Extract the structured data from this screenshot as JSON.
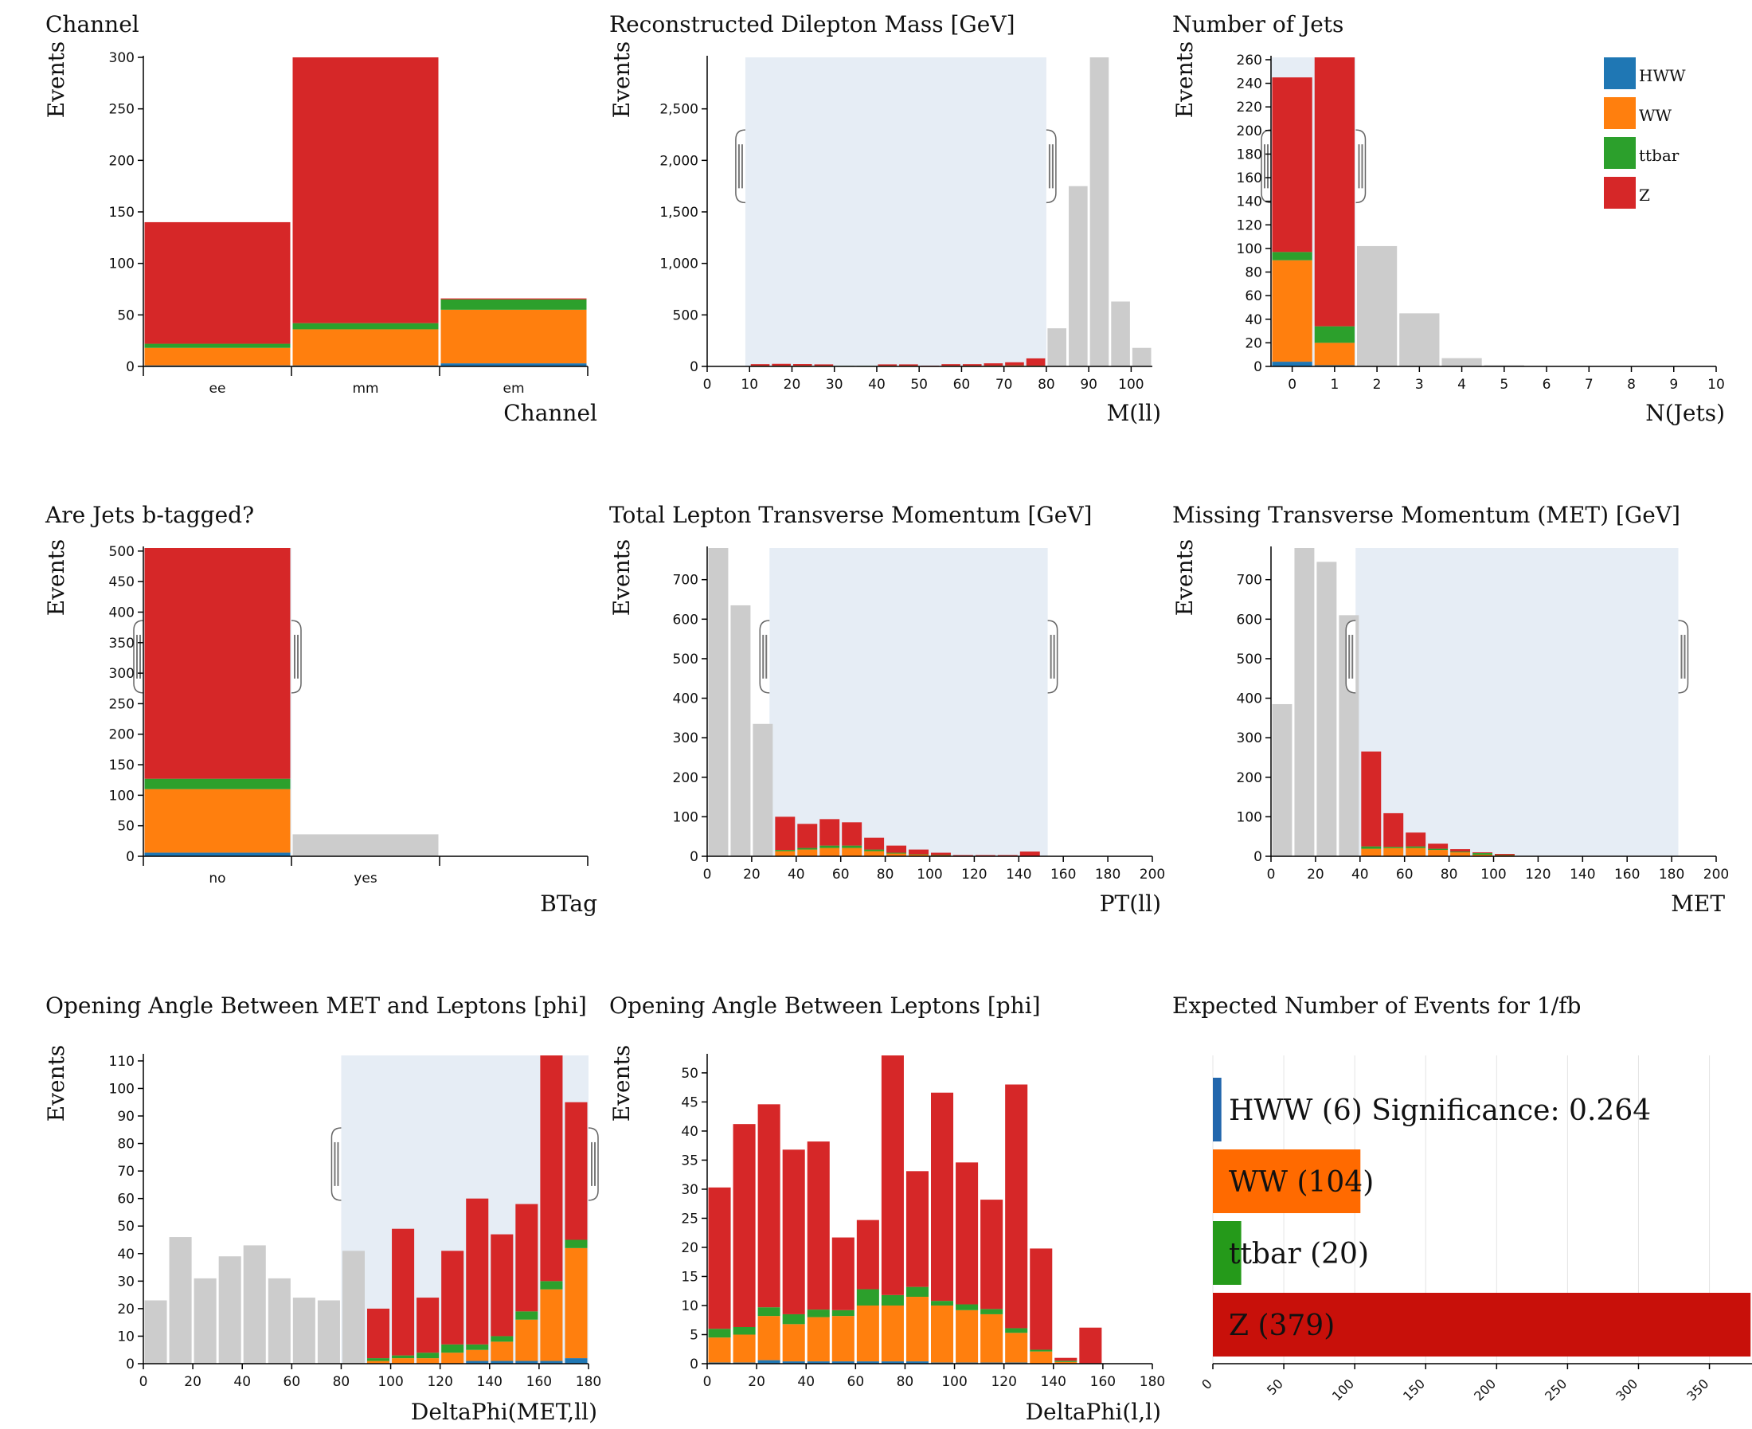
{
  "colors": {
    "HWW": "#1f77b4",
    "WW": "#ff7f0e",
    "ttbar": "#2ca02c",
    "Z": "#d62728",
    "inactive": "#cccccc",
    "brush": "#e6edf5"
  },
  "chart_data": [
    {
      "id": "channel",
      "type": "bar",
      "stacked": true,
      "title": "Channel",
      "xlabel": "Channel",
      "ylabel": "Events",
      "categories": [
        "ee",
        "mm",
        "em"
      ],
      "ylim": [
        0,
        300
      ],
      "yticks": [
        0,
        50,
        100,
        150,
        200,
        250,
        300
      ],
      "series": [
        {
          "name": "HWW",
          "values": [
            1,
            1,
            3
          ]
        },
        {
          "name": "WW",
          "values": [
            17,
            35,
            52
          ]
        },
        {
          "name": "ttbar",
          "values": [
            4,
            6,
            10
          ]
        },
        {
          "name": "Z",
          "values": [
            118,
            258,
            1
          ]
        }
      ],
      "inactive": [
        0,
        0,
        0
      ]
    },
    {
      "id": "mll",
      "type": "bar",
      "stacked": true,
      "title": "Reconstructed Dilepton Mass [GeV]",
      "xlabel": "M(ll)",
      "ylabel": "Events",
      "bin_width": 5,
      "xlim": [
        0,
        105
      ],
      "xticks": [
        0,
        10,
        20,
        30,
        40,
        50,
        60,
        70,
        80,
        90,
        100
      ],
      "ylim": [
        0,
        3000
      ],
      "yticks": [
        0,
        500,
        1000,
        1500,
        2000,
        2500
      ],
      "ytick_labels": [
        "0",
        "500",
        "1,000",
        "1,500",
        "2,000",
        "2,500"
      ],
      "x": [
        10,
        15,
        20,
        25,
        30,
        35,
        40,
        45,
        50,
        55,
        60,
        65,
        70,
        75,
        80,
        85,
        90,
        95,
        100
      ],
      "series": [
        {
          "name": "HWW",
          "values": [
            0,
            0,
            0,
            0,
            0,
            0,
            0,
            0,
            0,
            0,
            0,
            0,
            0,
            0,
            0,
            0,
            0,
            0,
            0
          ]
        },
        {
          "name": "WW",
          "values": [
            5,
            5,
            6,
            5,
            3,
            3,
            5,
            5,
            3,
            5,
            5,
            6,
            8,
            6,
            0,
            0,
            0,
            0,
            0
          ]
        },
        {
          "name": "ttbar",
          "values": [
            2,
            2,
            2,
            2,
            2,
            2,
            2,
            2,
            1,
            2,
            2,
            2,
            2,
            2,
            0,
            0,
            0,
            0,
            0
          ]
        },
        {
          "name": "Z",
          "values": [
            15,
            18,
            15,
            13,
            0,
            0,
            13,
            13,
            3,
            15,
            15,
            22,
            30,
            70,
            0,
            0,
            0,
            0,
            0
          ]
        }
      ],
      "inactive": [
        0,
        0,
        0,
        0,
        0,
        0,
        0,
        0,
        0,
        0,
        0,
        0,
        0,
        0,
        370,
        1750,
        3000,
        630,
        180
      ],
      "brush": [
        9,
        80
      ]
    },
    {
      "id": "njets",
      "type": "bar",
      "stacked": true,
      "title": "Number of Jets",
      "xlabel": "N(Jets)",
      "ylabel": "Events",
      "bin_width": 1,
      "bin_offset": -0.5,
      "xlim": [
        -0.5,
        10
      ],
      "xticks": [
        0,
        1,
        2,
        3,
        4,
        5,
        6,
        7,
        8,
        9,
        10
      ],
      "ylim": [
        0,
        262
      ],
      "yticks": [
        0,
        20,
        40,
        60,
        80,
        100,
        120,
        140,
        160,
        180,
        200,
        220,
        240,
        260
      ],
      "x": [
        0,
        1,
        2,
        3,
        4,
        5
      ],
      "series": [
        {
          "name": "HWW",
          "values": [
            4,
            1,
            0,
            0,
            0,
            0
          ]
        },
        {
          "name": "WW",
          "values": [
            86,
            19,
            0,
            0,
            0,
            0
          ]
        },
        {
          "name": "ttbar",
          "values": [
            7,
            14,
            0,
            0,
            0,
            0
          ]
        },
        {
          "name": "Z",
          "values": [
            148,
            228,
            0,
            0,
            0,
            0
          ]
        }
      ],
      "inactive": [
        0,
        0,
        102,
        45,
        7,
        1
      ],
      "brush": [
        -0.5,
        1.5
      ],
      "legend": [
        "HWW",
        "WW",
        "ttbar",
        "Z"
      ]
    },
    {
      "id": "btag",
      "type": "bar",
      "stacked": true,
      "title": "Are Jets b-tagged?",
      "xlabel": "BTag",
      "ylabel": "Events",
      "categories": [
        "no",
        "yes",
        ""
      ],
      "ylim": [
        0,
        505
      ],
      "yticks": [
        0,
        50,
        100,
        150,
        200,
        250,
        300,
        350,
        400,
        450,
        500
      ],
      "series": [
        {
          "name": "HWW",
          "values": [
            6,
            0,
            0
          ]
        },
        {
          "name": "WW",
          "values": [
            104,
            0,
            0
          ]
        },
        {
          "name": "ttbar",
          "values": [
            17,
            0,
            0
          ]
        },
        {
          "name": "Z",
          "values": [
            378,
            0,
            0
          ]
        }
      ],
      "inactive": [
        0,
        36,
        0
      ],
      "brush_bins": [
        0,
        1
      ]
    },
    {
      "id": "ptll",
      "type": "bar",
      "stacked": true,
      "title": "Total Lepton Transverse Momentum [GeV]",
      "xlabel": "PT(ll)",
      "ylabel": "Events",
      "bin_width": 10,
      "xlim": [
        0,
        200
      ],
      "xticks": [
        0,
        20,
        40,
        60,
        80,
        100,
        120,
        140,
        160,
        180,
        200
      ],
      "ylim": [
        0,
        780
      ],
      "yticks": [
        0,
        100,
        200,
        300,
        400,
        500,
        600,
        700
      ],
      "x": [
        0,
        10,
        20,
        30,
        40,
        50,
        60,
        70,
        80,
        90,
        100,
        110,
        120,
        130,
        140
      ],
      "series": [
        {
          "name": "HWW",
          "values": [
            0,
            0,
            0,
            1,
            1,
            1,
            1,
            1,
            0,
            0,
            0,
            0,
            0,
            0,
            0
          ]
        },
        {
          "name": "WW",
          "values": [
            0,
            0,
            0,
            12,
            16,
            20,
            20,
            12,
            7,
            4,
            2,
            1,
            1,
            1,
            1
          ]
        },
        {
          "name": "ttbar",
          "values": [
            0,
            0,
            0,
            3,
            4,
            6,
            6,
            4,
            2,
            1,
            1,
            0,
            0,
            0,
            0
          ]
        },
        {
          "name": "Z",
          "values": [
            0,
            0,
            0,
            84,
            61,
            67,
            59,
            30,
            18,
            12,
            6,
            2,
            2,
            2,
            11
          ]
        }
      ],
      "inactive": [
        780,
        635,
        335,
        0,
        0,
        0,
        0,
        0,
        0,
        0,
        0,
        0,
        0,
        0,
        0
      ],
      "brush": [
        28,
        153
      ]
    },
    {
      "id": "met",
      "type": "bar",
      "stacked": true,
      "title": "Missing Transverse Momentum (MET) [GeV]",
      "xlabel": "MET",
      "ylabel": "Events",
      "bin_width": 10,
      "xlim": [
        0,
        200
      ],
      "xticks": [
        0,
        20,
        40,
        60,
        80,
        100,
        120,
        140,
        160,
        180,
        200
      ],
      "ylim": [
        0,
        780
      ],
      "yticks": [
        0,
        100,
        200,
        300,
        400,
        500,
        600,
        700
      ],
      "x": [
        0,
        10,
        20,
        30,
        40,
        50,
        60,
        70,
        80,
        90,
        100
      ],
      "series": [
        {
          "name": "HWW",
          "values": [
            0,
            0,
            0,
            0,
            1,
            1,
            1,
            1,
            0,
            0,
            0
          ]
        },
        {
          "name": "WW",
          "values": [
            0,
            0,
            0,
            0,
            18,
            20,
            20,
            15,
            10,
            4,
            2
          ]
        },
        {
          "name": "ttbar",
          "values": [
            0,
            0,
            0,
            0,
            6,
            3,
            4,
            3,
            2,
            4,
            1
          ]
        },
        {
          "name": "Z",
          "values": [
            0,
            0,
            0,
            0,
            240,
            85,
            35,
            13,
            6,
            2,
            3
          ]
        }
      ],
      "inactive": [
        385,
        780,
        745,
        610,
        0,
        0,
        0,
        0,
        0,
        0,
        0
      ],
      "brush": [
        38,
        183
      ]
    },
    {
      "id": "dphi_metll",
      "type": "bar",
      "stacked": true,
      "title": "Opening Angle Between MET and Leptons [phi]",
      "xlabel": "DeltaPhi(MET,ll)",
      "ylabel": "Events",
      "bin_width": 10,
      "xlim": [
        0,
        180
      ],
      "xticks": [
        0,
        20,
        40,
        60,
        80,
        100,
        120,
        140,
        160,
        180
      ],
      "ylim": [
        0,
        112
      ],
      "yticks": [
        0,
        10,
        20,
        30,
        40,
        50,
        60,
        70,
        80,
        90,
        100,
        110
      ],
      "x": [
        0,
        10,
        20,
        30,
        40,
        50,
        60,
        70,
        80,
        90,
        100,
        110,
        120,
        130,
        140,
        150,
        160,
        170
      ],
      "series": [
        {
          "name": "HWW",
          "values": [
            0,
            0,
            0,
            0,
            0,
            0,
            0,
            0,
            0,
            0,
            0,
            0,
            0,
            1,
            1,
            1,
            1,
            2
          ]
        },
        {
          "name": "WW",
          "values": [
            0,
            0,
            0,
            0,
            0,
            0,
            0,
            0,
            0,
            1,
            2,
            2,
            4,
            4,
            7,
            15,
            26,
            40
          ]
        },
        {
          "name": "ttbar",
          "values": [
            0,
            0,
            0,
            0,
            0,
            0,
            0,
            0,
            0,
            1,
            1,
            2,
            3,
            2,
            2,
            3,
            3,
            3
          ]
        },
        {
          "name": "Z",
          "values": [
            0,
            0,
            0,
            0,
            0,
            0,
            0,
            0,
            0,
            18,
            46,
            20,
            34,
            53,
            37,
            39,
            82,
            50
          ]
        }
      ],
      "inactive": [
        23,
        46,
        31,
        39,
        43,
        31,
        24,
        23,
        41,
        0,
        0,
        0,
        0,
        0,
        0,
        0,
        0,
        0
      ],
      "brush": [
        80,
        180
      ]
    },
    {
      "id": "dphi_ll",
      "type": "bar",
      "stacked": true,
      "title": "Opening Angle Between Leptons [phi]",
      "xlabel": "DeltaPhi(l,l)",
      "ylabel": "Events",
      "bin_width": 10,
      "xlim": [
        0,
        180
      ],
      "xticks": [
        0,
        20,
        40,
        60,
        80,
        100,
        120,
        140,
        160,
        180
      ],
      "ylim": [
        0,
        53
      ],
      "yticks": [
        0,
        5,
        10,
        15,
        20,
        25,
        30,
        35,
        40,
        45,
        50
      ],
      "x": [
        0,
        10,
        20,
        30,
        40,
        50,
        60,
        70,
        80,
        90,
        100,
        110,
        120,
        130,
        140,
        150
      ],
      "series": [
        {
          "name": "HWW",
          "values": [
            0.2,
            0.2,
            0.6,
            0.4,
            0.4,
            0.4,
            0.4,
            0.4,
            0.4,
            0.2,
            0.2,
            0.2,
            0.2,
            0,
            0,
            0
          ]
        },
        {
          "name": "WW",
          "values": [
            4.3,
            4.8,
            7.6,
            6.4,
            7.6,
            7.8,
            9.6,
            9.6,
            11.1,
            9.8,
            9.0,
            8.3,
            5.1,
            2.1,
            0.3,
            0
          ]
        },
        {
          "name": "ttbar",
          "values": [
            1.5,
            1.3,
            1.5,
            1.7,
            1.3,
            1.0,
            2.8,
            1.8,
            1.7,
            0.8,
            1.0,
            0.9,
            0.8,
            0.3,
            0.2,
            0
          ]
        },
        {
          "name": "Z",
          "values": [
            24.3,
            34.9,
            34.9,
            28.3,
            28.9,
            12.5,
            11.9,
            41.7,
            19.9,
            35.8,
            24.4,
            18.8,
            41.9,
            17.4,
            0.5,
            6.2
          ]
        }
      ],
      "inactive": [
        0,
        0,
        0,
        0,
        0,
        0,
        0,
        0,
        0,
        0,
        0,
        0,
        0,
        0,
        0,
        0
      ]
    },
    {
      "id": "expected",
      "type": "bar",
      "orientation": "horizontal",
      "title": "Expected Number of Events for 1/fb",
      "categories": [
        "HWW",
        "WW",
        "ttbar",
        "Z"
      ],
      "values": [
        6,
        104,
        20,
        379
      ],
      "labels": [
        "HWW (6) Significance: 0.264",
        "WW (104)",
        "ttbar (20)",
        "Z (379)"
      ],
      "bar_colors": [
        "#2166ac",
        "#ff6a00",
        "#259a1a",
        "#c8100a"
      ],
      "xlim": [
        0,
        380
      ],
      "xticks": [
        0,
        50,
        100,
        150,
        200,
        250,
        300,
        350
      ]
    }
  ]
}
